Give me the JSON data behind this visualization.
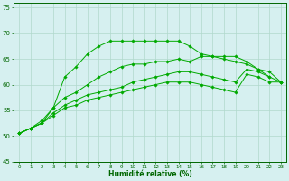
{
  "xlabel": "Humidité relative (%)",
  "xlim": [
    -0.5,
    23.5
  ],
  "ylim": [
    45,
    76
  ],
  "yticks": [
    45,
    50,
    55,
    60,
    65,
    70,
    75
  ],
  "xticks": [
    0,
    1,
    2,
    3,
    4,
    5,
    6,
    7,
    8,
    9,
    10,
    11,
    12,
    13,
    14,
    15,
    16,
    17,
    18,
    19,
    20,
    21,
    22,
    23
  ],
  "background_color": "#d6f0f0",
  "grid_color": "#b0d8cc",
  "line_color": "#00aa00",
  "series": [
    [
      50.5,
      51.5,
      52.5,
      54.0,
      55.5,
      56.0,
      57.0,
      57.5,
      58.0,
      58.5,
      59.0,
      59.5,
      60.0,
      60.5,
      60.5,
      60.5,
      60.0,
      59.5,
      59.0,
      58.5,
      62.0,
      61.5,
      60.5,
      60.5
    ],
    [
      50.5,
      51.5,
      52.5,
      54.5,
      56.0,
      57.0,
      58.0,
      58.5,
      59.0,
      59.5,
      60.5,
      61.0,
      61.5,
      62.0,
      62.5,
      62.5,
      62.0,
      61.5,
      61.0,
      60.5,
      63.0,
      62.5,
      61.5,
      60.5
    ],
    [
      50.5,
      51.5,
      53.0,
      55.5,
      57.5,
      58.5,
      60.0,
      61.5,
      62.5,
      63.5,
      64.0,
      64.0,
      64.5,
      64.5,
      65.0,
      64.5,
      65.5,
      65.5,
      65.0,
      64.5,
      64.0,
      63.0,
      62.5,
      60.5
    ],
    [
      50.5,
      51.5,
      52.5,
      55.5,
      61.5,
      63.5,
      66.0,
      67.5,
      68.5,
      68.5,
      68.5,
      68.5,
      68.5,
      68.5,
      68.5,
      67.5,
      66.0,
      65.5,
      65.5,
      65.5,
      64.5,
      63.0,
      61.5,
      null
    ]
  ]
}
